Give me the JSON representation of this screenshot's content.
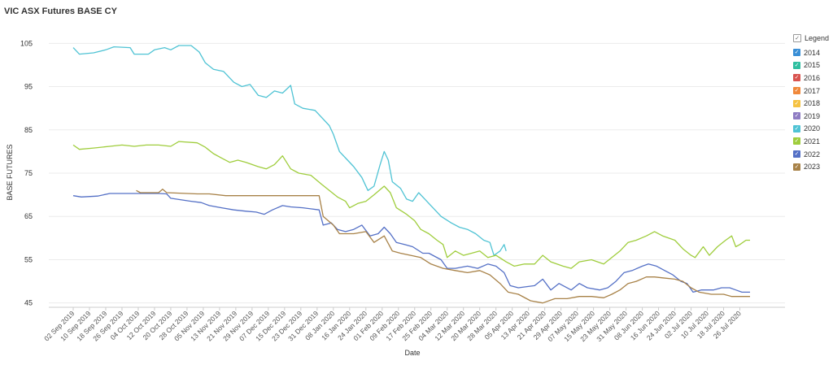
{
  "chart_data": {
    "type": "line",
    "title": "VIC ASX Futures BASE CY",
    "xlabel": "Date",
    "ylabel": "BASE FUTURES",
    "ylim": [
      44,
      106
    ],
    "yticks": [
      45,
      55,
      65,
      75,
      85,
      95,
      105
    ],
    "x_date_range": [
      "2019-09-02",
      "2020-07-31"
    ],
    "xticks": [
      "02 Sep 2019",
      "10 Sep 2019",
      "18 Sep 2019",
      "26 Sep 2019",
      "04 Oct 2019",
      "12 Oct 2019",
      "20 Oct 2019",
      "28 Oct 2019",
      "05 Nov 2019",
      "13 Nov 2019",
      "21 Nov 2019",
      "29 Nov 2019",
      "07 Dec 2019",
      "15 Dec 2019",
      "23 Dec 2019",
      "31 Dec 2019",
      "08 Jan 2020",
      "16 Jan 2020",
      "24 Jan 2020",
      "01 Feb 2020",
      "09 Feb 2020",
      "17 Feb 2020",
      "25 Feb 2020",
      "04 Mar 2020",
      "12 Mar 2020",
      "20 Mar 2020",
      "28 Mar 2020",
      "05 Apr 2020",
      "13 Apr 2020",
      "21 Apr 2020",
      "29 Apr 2020",
      "07 May 2020",
      "15 May 2020",
      "23 May 2020",
      "31 May 2020",
      "08 Jun 2020",
      "16 Jun 2020",
      "24 Jun 2020",
      "02 Jul 2020",
      "10 Jul 2020",
      "18 Jul 2020",
      "26 Jul 2020"
    ],
    "grid": true,
    "legend_position": "right",
    "legend_title": "Legend",
    "series": [
      {
        "name": "2014",
        "color": "#3a8fd6",
        "points": []
      },
      {
        "name": "2015",
        "color": "#2fbfa0",
        "points": []
      },
      {
        "name": "2016",
        "color": "#d9534f",
        "points": []
      },
      {
        "name": "2017",
        "color": "#f0883a",
        "points": []
      },
      {
        "name": "2018",
        "color": "#f5c242",
        "points": []
      },
      {
        "name": "2019",
        "color": "#8e7cc3",
        "points": []
      },
      {
        "name": "2020",
        "color": "#4fc3d4",
        "points": [
          [
            "2019-09-02",
            104
          ],
          [
            "2019-09-05",
            102.5
          ],
          [
            "2019-09-12",
            102.8
          ],
          [
            "2019-09-18",
            103.5
          ],
          [
            "2019-09-22",
            104.2
          ],
          [
            "2019-09-30",
            104
          ],
          [
            "2019-10-02",
            102.5
          ],
          [
            "2019-10-09",
            102.5
          ],
          [
            "2019-10-12",
            103.5
          ],
          [
            "2019-10-17",
            104
          ],
          [
            "2019-10-20",
            103.5
          ],
          [
            "2019-10-24",
            104.5
          ],
          [
            "2019-10-30",
            104.5
          ],
          [
            "2019-11-03",
            103
          ],
          [
            "2019-11-06",
            100.5
          ],
          [
            "2019-11-10",
            99
          ],
          [
            "2019-11-15",
            98.5
          ],
          [
            "2019-11-20",
            96
          ],
          [
            "2019-11-24",
            95
          ],
          [
            "2019-11-28",
            95.5
          ],
          [
            "2019-12-02",
            93
          ],
          [
            "2019-12-06",
            92.5
          ],
          [
            "2019-12-10",
            94
          ],
          [
            "2019-12-14",
            93.5
          ],
          [
            "2019-12-18",
            95.3
          ],
          [
            "2019-12-20",
            91
          ],
          [
            "2019-12-24",
            90
          ],
          [
            "2019-12-30",
            89.5
          ],
          [
            "2020-01-02",
            88
          ],
          [
            "2020-01-06",
            86
          ],
          [
            "2020-01-08",
            84
          ],
          [
            "2020-01-11",
            80
          ],
          [
            "2020-01-15",
            78
          ],
          [
            "2020-01-18",
            76.5
          ],
          [
            "2020-01-22",
            74
          ],
          [
            "2020-01-25",
            71
          ],
          [
            "2020-01-28",
            72
          ],
          [
            "2020-01-31",
            77
          ],
          [
            "2020-02-02",
            80
          ],
          [
            "2020-02-04",
            78
          ],
          [
            "2020-02-06",
            73
          ],
          [
            "2020-02-10",
            71.5
          ],
          [
            "2020-02-13",
            69
          ],
          [
            "2020-02-16",
            68.5
          ],
          [
            "2020-02-19",
            70.5
          ],
          [
            "2020-02-22",
            69
          ],
          [
            "2020-02-26",
            67
          ],
          [
            "2020-03-01",
            65
          ],
          [
            "2020-03-06",
            63.5
          ],
          [
            "2020-03-10",
            62.5
          ],
          [
            "2020-03-14",
            62
          ],
          [
            "2020-03-18",
            61
          ],
          [
            "2020-03-22",
            59.5
          ],
          [
            "2020-03-25",
            59
          ],
          [
            "2020-03-27",
            56
          ],
          [
            "2020-03-30",
            57
          ],
          [
            "2020-04-01",
            58.5
          ],
          [
            "2020-04-02",
            57
          ]
        ]
      },
      {
        "name": "2021",
        "color": "#9fcd3c",
        "points": [
          [
            "2019-09-02",
            81.5
          ],
          [
            "2019-09-05",
            80.5
          ],
          [
            "2019-09-12",
            80.8
          ],
          [
            "2019-09-20",
            81.2
          ],
          [
            "2019-09-26",
            81.5
          ],
          [
            "2019-10-02",
            81.2
          ],
          [
            "2019-10-08",
            81.5
          ],
          [
            "2019-10-14",
            81.5
          ],
          [
            "2019-10-20",
            81.2
          ],
          [
            "2019-10-24",
            82.3
          ],
          [
            "2019-11-02",
            82
          ],
          [
            "2019-11-06",
            81
          ],
          [
            "2019-11-10",
            79.5
          ],
          [
            "2019-11-14",
            78.5
          ],
          [
            "2019-11-18",
            77.5
          ],
          [
            "2019-11-22",
            78
          ],
          [
            "2019-11-26",
            77.5
          ],
          [
            "2019-12-02",
            76.5
          ],
          [
            "2019-12-06",
            76
          ],
          [
            "2019-12-10",
            77
          ],
          [
            "2019-12-14",
            79
          ],
          [
            "2019-12-18",
            76
          ],
          [
            "2019-12-22",
            75
          ],
          [
            "2019-12-28",
            74.5
          ],
          [
            "2020-01-02",
            72.5
          ],
          [
            "2020-01-06",
            71
          ],
          [
            "2020-01-10",
            69.5
          ],
          [
            "2020-01-14",
            68.5
          ],
          [
            "2020-01-16",
            67
          ],
          [
            "2020-01-20",
            68
          ],
          [
            "2020-01-24",
            68.5
          ],
          [
            "2020-01-28",
            70
          ],
          [
            "2020-02-02",
            72
          ],
          [
            "2020-02-05",
            70.5
          ],
          [
            "2020-02-08",
            67
          ],
          [
            "2020-02-13",
            65.5
          ],
          [
            "2020-02-17",
            64
          ],
          [
            "2020-02-20",
            62
          ],
          [
            "2020-02-24",
            61
          ],
          [
            "2020-02-28",
            59.5
          ],
          [
            "2020-03-02",
            58.5
          ],
          [
            "2020-03-04",
            55.5
          ],
          [
            "2020-03-08",
            57
          ],
          [
            "2020-03-12",
            56
          ],
          [
            "2020-03-16",
            56.5
          ],
          [
            "2020-03-20",
            57
          ],
          [
            "2020-03-24",
            55.5
          ],
          [
            "2020-03-28",
            56
          ],
          [
            "2020-04-02",
            54.5
          ],
          [
            "2020-04-06",
            53.5
          ],
          [
            "2020-04-11",
            54
          ],
          [
            "2020-04-16",
            54
          ],
          [
            "2020-04-20",
            56
          ],
          [
            "2020-04-24",
            54.5
          ],
          [
            "2020-04-30",
            53.5
          ],
          [
            "2020-05-04",
            53
          ],
          [
            "2020-05-08",
            54.5
          ],
          [
            "2020-05-14",
            55
          ],
          [
            "2020-05-20",
            54
          ],
          [
            "2020-05-24",
            55.5
          ],
          [
            "2020-05-28",
            57
          ],
          [
            "2020-06-01",
            59
          ],
          [
            "2020-06-05",
            59.5
          ],
          [
            "2020-06-10",
            60.5
          ],
          [
            "2020-06-14",
            61.5
          ],
          [
            "2020-06-18",
            60.5
          ],
          [
            "2020-06-24",
            59.5
          ],
          [
            "2020-06-28",
            57.5
          ],
          [
            "2020-07-02",
            56
          ],
          [
            "2020-07-04",
            55.5
          ],
          [
            "2020-07-08",
            58
          ],
          [
            "2020-07-11",
            56
          ],
          [
            "2020-07-15",
            58
          ],
          [
            "2020-07-19",
            59.5
          ],
          [
            "2020-07-22",
            60.5
          ],
          [
            "2020-07-24",
            58
          ],
          [
            "2020-07-26",
            58.5
          ],
          [
            "2020-07-29",
            59.5
          ],
          [
            "2020-07-31",
            59.5
          ]
        ]
      },
      {
        "name": "2022",
        "color": "#5470c6",
        "points": [
          [
            "2019-09-02",
            69.8
          ],
          [
            "2019-09-06",
            69.5
          ],
          [
            "2019-09-14",
            69.7
          ],
          [
            "2019-09-20",
            70.3
          ],
          [
            "2019-10-02",
            70.3
          ],
          [
            "2019-10-14",
            70.3
          ],
          [
            "2019-10-18",
            70.2
          ],
          [
            "2019-10-20",
            69.2
          ],
          [
            "2019-10-30",
            68.5
          ],
          [
            "2019-11-04",
            68.2
          ],
          [
            "2019-11-08",
            67.5
          ],
          [
            "2019-11-14",
            67
          ],
          [
            "2019-11-20",
            66.5
          ],
          [
            "2019-11-26",
            66.2
          ],
          [
            "2019-12-01",
            66
          ],
          [
            "2019-12-05",
            65.5
          ],
          [
            "2019-12-09",
            66.5
          ],
          [
            "2019-12-14",
            67.5
          ],
          [
            "2019-12-18",
            67.2
          ],
          [
            "2019-12-24",
            67
          ],
          [
            "2020-01-01",
            66.5
          ],
          [
            "2020-01-03",
            63
          ],
          [
            "2020-01-07",
            63.5
          ],
          [
            "2020-01-10",
            62
          ],
          [
            "2020-01-14",
            61.5
          ],
          [
            "2020-01-18",
            62
          ],
          [
            "2020-01-22",
            63
          ],
          [
            "2020-01-26",
            60.5
          ],
          [
            "2020-01-30",
            61
          ],
          [
            "2020-02-02",
            62.5
          ],
          [
            "2020-02-05",
            61
          ],
          [
            "2020-02-08",
            59
          ],
          [
            "2020-02-12",
            58.5
          ],
          [
            "2020-02-16",
            58
          ],
          [
            "2020-02-21",
            56.5
          ],
          [
            "2020-02-24",
            56.5
          ],
          [
            "2020-03-01",
            55
          ],
          [
            "2020-03-04",
            53
          ],
          [
            "2020-03-08",
            53
          ],
          [
            "2020-03-14",
            53.5
          ],
          [
            "2020-03-19",
            53
          ],
          [
            "2020-03-24",
            54
          ],
          [
            "2020-03-28",
            53.5
          ],
          [
            "2020-04-01",
            52
          ],
          [
            "2020-04-04",
            49
          ],
          [
            "2020-04-08",
            48.5
          ],
          [
            "2020-04-16",
            49
          ],
          [
            "2020-04-20",
            50.5
          ],
          [
            "2020-04-24",
            48
          ],
          [
            "2020-04-28",
            49.5
          ],
          [
            "2020-05-04",
            48
          ],
          [
            "2020-05-08",
            49.5
          ],
          [
            "2020-05-12",
            48.5
          ],
          [
            "2020-05-18",
            48
          ],
          [
            "2020-05-22",
            48.5
          ],
          [
            "2020-05-26",
            50
          ],
          [
            "2020-05-30",
            52
          ],
          [
            "2020-06-03",
            52.5
          ],
          [
            "2020-06-08",
            53.5
          ],
          [
            "2020-06-11",
            54
          ],
          [
            "2020-06-15",
            53.5
          ],
          [
            "2020-06-19",
            52.5
          ],
          [
            "2020-06-23",
            51.5
          ],
          [
            "2020-06-27",
            50
          ],
          [
            "2020-06-30",
            49.5
          ],
          [
            "2020-07-03",
            47.5
          ],
          [
            "2020-07-07",
            48
          ],
          [
            "2020-07-13",
            48
          ],
          [
            "2020-07-17",
            48.5
          ],
          [
            "2020-07-21",
            48.5
          ],
          [
            "2020-07-24",
            48
          ],
          [
            "2020-07-27",
            47.5
          ],
          [
            "2020-07-31",
            47.5
          ]
        ]
      },
      {
        "name": "2023",
        "color": "#a88248",
        "points": [
          [
            "2019-10-03",
            71
          ],
          [
            "2019-10-05",
            70.5
          ],
          [
            "2019-10-14",
            70.5
          ],
          [
            "2019-10-16",
            71.3
          ],
          [
            "2019-10-18",
            70.5
          ],
          [
            "2019-11-02",
            70.2
          ],
          [
            "2019-11-08",
            70.2
          ],
          [
            "2019-11-16",
            69.8
          ],
          [
            "2019-12-08",
            69.8
          ],
          [
            "2020-01-01",
            69.8
          ],
          [
            "2020-01-03",
            65
          ],
          [
            "2020-01-08",
            63
          ],
          [
            "2020-01-11",
            61
          ],
          [
            "2020-01-18",
            61
          ],
          [
            "2020-01-24",
            61.5
          ],
          [
            "2020-01-28",
            59
          ],
          [
            "2020-02-02",
            60.5
          ],
          [
            "2020-02-06",
            57
          ],
          [
            "2020-02-10",
            56.5
          ],
          [
            "2020-02-15",
            56
          ],
          [
            "2020-02-20",
            55.5
          ],
          [
            "2020-02-25",
            54
          ],
          [
            "2020-03-02",
            53
          ],
          [
            "2020-03-08",
            52.5
          ],
          [
            "2020-03-14",
            52
          ],
          [
            "2020-03-20",
            52.5
          ],
          [
            "2020-03-25",
            51.5
          ],
          [
            "2020-03-30",
            49.5
          ],
          [
            "2020-04-03",
            47.5
          ],
          [
            "2020-04-08",
            47
          ],
          [
            "2020-04-14",
            45.5
          ],
          [
            "2020-04-20",
            45
          ],
          [
            "2020-04-26",
            46
          ],
          [
            "2020-05-02",
            46
          ],
          [
            "2020-05-08",
            46.5
          ],
          [
            "2020-05-14",
            46.5
          ],
          [
            "2020-05-20",
            46.2
          ],
          [
            "2020-05-24",
            47
          ],
          [
            "2020-05-28",
            48
          ],
          [
            "2020-06-01",
            49.5
          ],
          [
            "2020-06-05",
            50
          ],
          [
            "2020-06-10",
            51
          ],
          [
            "2020-06-14",
            51
          ],
          [
            "2020-06-18",
            50.8
          ],
          [
            "2020-06-24",
            50.5
          ],
          [
            "2020-06-28",
            50
          ],
          [
            "2020-07-02",
            48.5
          ],
          [
            "2020-07-06",
            47.5
          ],
          [
            "2020-07-12",
            47
          ],
          [
            "2020-07-18",
            47
          ],
          [
            "2020-07-22",
            46.5
          ],
          [
            "2020-07-31",
            46.5
          ]
        ]
      }
    ]
  }
}
